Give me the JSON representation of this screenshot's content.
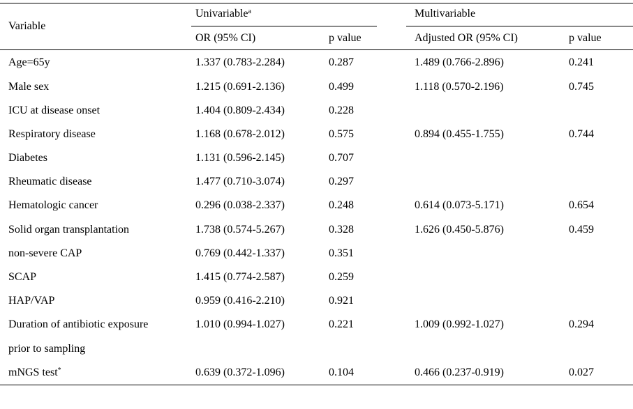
{
  "headers": {
    "variable": "Variable",
    "univariable": "Univariable",
    "univariable_sup": "a",
    "multivariable": "Multivariable",
    "or_ci": "OR (95% CI)",
    "p_value": "p value",
    "adj_or_ci": "Adjusted OR (95% CI)",
    "p_value_multi": "p value"
  },
  "rows": [
    {
      "variable": "Age=65y",
      "or": "1.337 (0.783-2.284)",
      "p": "0.287",
      "adj_or": "1.489 (0.766-2.896)",
      "adj_p": "0.241"
    },
    {
      "variable": "Male sex",
      "or": "1.215 (0.691-2.136)",
      "p": "0.499",
      "adj_or": "1.118 (0.570-2.196)",
      "adj_p": "0.745"
    },
    {
      "variable": "ICU at disease onset",
      "or": "1.404 (0.809-2.434)",
      "p": "0.228",
      "adj_or": "",
      "adj_p": ""
    },
    {
      "variable": "Respiratory disease",
      "or": "1.168 (0.678-2.012)",
      "p": "0.575",
      "adj_or": "0.894 (0.455-1.755)",
      "adj_p": "0.744"
    },
    {
      "variable": "Diabetes",
      "or": "1.131 (0.596-2.145)",
      "p": "0.707",
      "adj_or": "",
      "adj_p": ""
    },
    {
      "variable": "Rheumatic disease",
      "or": "1.477 (0.710-3.074)",
      "p": "0.297",
      "adj_or": "",
      "adj_p": ""
    },
    {
      "variable": "Hematologic cancer",
      "or": "0.296 (0.038-2.337)",
      "p": "0.248",
      "adj_or": "0.614 (0.073-5.171)",
      "adj_p": "0.654"
    },
    {
      "variable": "Solid organ transplantation",
      "or": "1.738 (0.574-5.267)",
      "p": "0.328",
      "adj_or": "1.626 (0.450-5.876)",
      "adj_p": "0.459"
    },
    {
      "variable": "non-severe CAP",
      "or": "0.769 (0.442-1.337)",
      "p": "0.351",
      "adj_or": "",
      "adj_p": ""
    },
    {
      "variable": "SCAP",
      "or": "1.415 (0.774-2.587)",
      "p": "0.259",
      "adj_or": "",
      "adj_p": ""
    },
    {
      "variable": "HAP/VAP",
      "or": "0.959 (0.416-2.210)",
      "p": "0.921",
      "adj_or": "",
      "adj_p": ""
    },
    {
      "variable": "Duration of antibiotic exposure",
      "or": "1.010 (0.994-1.027)",
      "p": "0.221",
      "adj_or": "1.009 (0.992-1.027)",
      "adj_p": "0.294"
    },
    {
      "variable": "prior to sampling",
      "or": "",
      "p": "",
      "adj_or": "",
      "adj_p": ""
    },
    {
      "variable": "mNGS test",
      "variable_sup": "*",
      "or": "0.639 (0.372-1.096)",
      "p": "0.104",
      "adj_or": "0.466 (0.237-0.919)",
      "adj_p": "0.027"
    }
  ]
}
